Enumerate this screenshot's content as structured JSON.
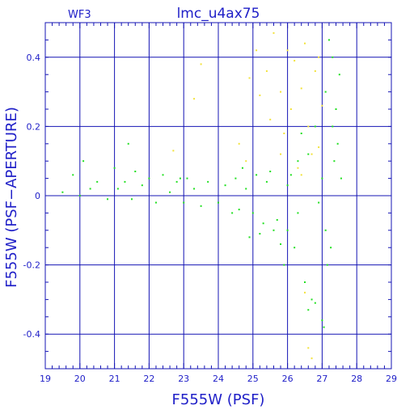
{
  "chart_data": {
    "type": "scatter",
    "title": "lmc_u4ax75",
    "panel_label": "WF3",
    "xlabel": "F555W (PSF)",
    "ylabel": "F555W (PSF−APERTURE)",
    "xlim": [
      19,
      29
    ],
    "ylim": [
      -0.5,
      0.5
    ],
    "x_ticks": [
      19,
      20,
      21,
      22,
      23,
      24,
      25,
      26,
      27,
      28,
      29
    ],
    "y_ticks": [
      -0.4,
      -0.2,
      0,
      0.2,
      0.4
    ],
    "y_tick_labels": [
      "-0.4",
      "-0.2",
      "0",
      "0.2",
      "0.4"
    ],
    "grid": true,
    "colors": {
      "axes": "#1414b4",
      "text": "#2020c8",
      "green": "#22e022",
      "yellow": "#f2e23a"
    },
    "series": [
      {
        "color": "green",
        "points": [
          [
            19.5,
            0.01
          ],
          [
            19.8,
            0.06
          ],
          [
            20.0,
            0.0
          ],
          [
            20.1,
            0.1
          ],
          [
            20.3,
            0.02
          ],
          [
            20.5,
            0.04
          ],
          [
            20.8,
            -0.01
          ],
          [
            21.0,
            0.08
          ],
          [
            21.1,
            0.02
          ],
          [
            21.3,
            0.04
          ],
          [
            21.5,
            -0.01
          ],
          [
            21.6,
            0.07
          ],
          [
            21.8,
            0.03
          ],
          [
            22.0,
            0.05
          ],
          [
            22.2,
            -0.02
          ],
          [
            22.4,
            0.06
          ],
          [
            22.6,
            0.01
          ],
          [
            22.8,
            0.04
          ],
          [
            23.0,
            -0.02
          ],
          [
            23.1,
            0.05
          ],
          [
            21.4,
            0.15
          ],
          [
            22.9,
            0.05
          ],
          [
            23.3,
            0.02
          ],
          [
            23.5,
            -0.03
          ],
          [
            23.7,
            0.04
          ],
          [
            24.0,
            -0.02
          ],
          [
            24.2,
            0.03
          ],
          [
            24.4,
            -0.05
          ],
          [
            24.5,
            0.05
          ],
          [
            24.6,
            -0.04
          ],
          [
            24.8,
            0.02
          ],
          [
            25.0,
            -0.05
          ],
          [
            25.1,
            0.06
          ],
          [
            25.3,
            -0.08
          ],
          [
            25.4,
            0.04
          ],
          [
            25.6,
            -0.1
          ],
          [
            25.8,
            -0.14
          ],
          [
            25.9,
            -0.2
          ],
          [
            26.0,
            -0.1
          ],
          [
            26.1,
            0.06
          ],
          [
            26.2,
            -0.15
          ],
          [
            26.3,
            -0.05
          ],
          [
            26.4,
            0.18
          ],
          [
            26.5,
            -0.25
          ],
          [
            26.6,
            0.12
          ],
          [
            26.7,
            -0.3
          ],
          [
            26.8,
            0.2
          ],
          [
            26.9,
            -0.02
          ],
          [
            27.0,
            -0.36
          ],
          [
            27.0,
            0.05
          ],
          [
            27.05,
            -0.38
          ],
          [
            27.1,
            0.3
          ],
          [
            27.15,
            -0.2
          ],
          [
            27.2,
            0.45
          ],
          [
            27.25,
            -0.15
          ],
          [
            27.3,
            0.4
          ],
          [
            27.35,
            0.1
          ],
          [
            27.4,
            0.25
          ],
          [
            27.5,
            0.35
          ],
          [
            27.55,
            0.05
          ],
          [
            26.3,
            0.1
          ],
          [
            26.6,
            -0.33
          ],
          [
            26.8,
            -0.31
          ],
          [
            27.1,
            -0.1
          ],
          [
            24.7,
            0.08
          ],
          [
            24.9,
            -0.12
          ],
          [
            25.2,
            -0.11
          ],
          [
            25.5,
            0.07
          ],
          [
            25.7,
            -0.07
          ],
          [
            26.0,
            0.03
          ],
          [
            27.3,
            0.2
          ],
          [
            27.45,
            0.15
          ]
        ]
      },
      {
        "color": "yellow",
        "points": [
          [
            22.7,
            0.13
          ],
          [
            23.3,
            0.28
          ],
          [
            23.5,
            0.38
          ],
          [
            24.6,
            0.15
          ],
          [
            24.8,
            0.1
          ],
          [
            24.9,
            0.34
          ],
          [
            25.1,
            0.42
          ],
          [
            25.2,
            0.29
          ],
          [
            25.4,
            0.36
          ],
          [
            25.5,
            0.22
          ],
          [
            25.6,
            0.47
          ],
          [
            25.8,
            0.3
          ],
          [
            25.9,
            0.18
          ],
          [
            26.0,
            0.42
          ],
          [
            26.1,
            0.25
          ],
          [
            26.2,
            0.39
          ],
          [
            26.3,
            0.08
          ],
          [
            26.4,
            0.31
          ],
          [
            26.5,
            0.44
          ],
          [
            26.6,
            0.2
          ],
          [
            26.7,
            0.12
          ],
          [
            26.8,
            0.36
          ],
          [
            26.9,
            0.4
          ],
          [
            27.0,
            0.26
          ],
          [
            26.5,
            -0.28
          ],
          [
            26.6,
            -0.44
          ],
          [
            26.7,
            -0.47
          ],
          [
            26.4,
            0.06
          ],
          [
            25.8,
            0.12
          ],
          [
            26.9,
            0.14
          ]
        ]
      }
    ]
  }
}
